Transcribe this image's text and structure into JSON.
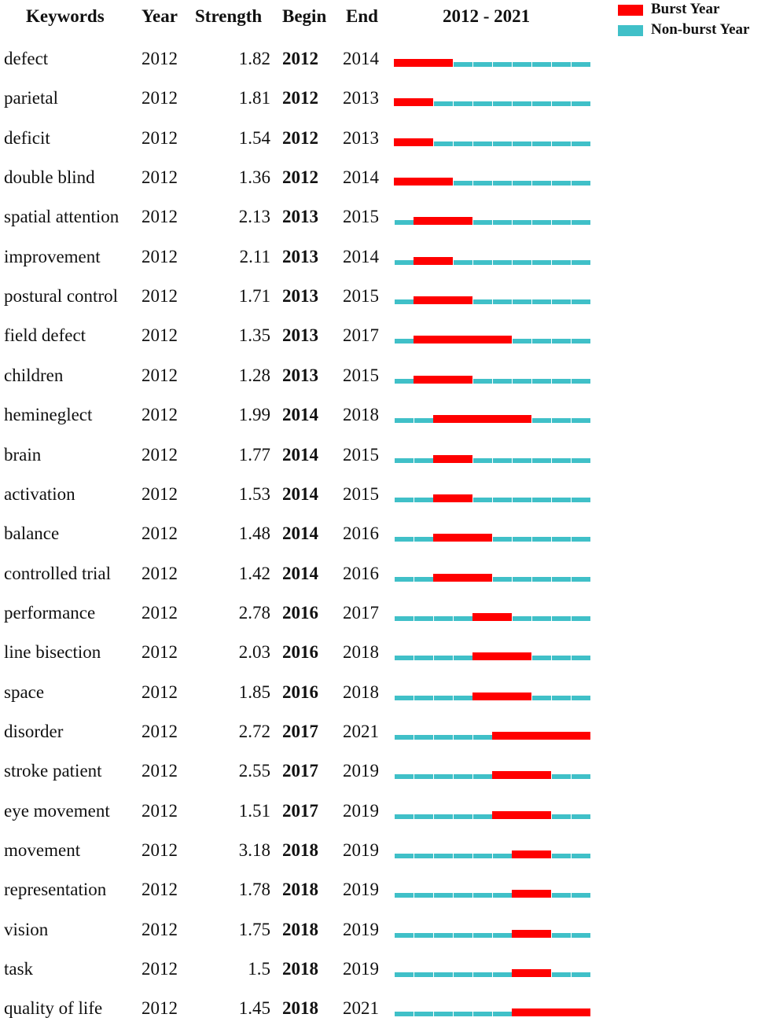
{
  "chart_data": {
    "type": "table",
    "headers": {
      "keywords": "Keywords",
      "year": "Year",
      "strength": "Strength",
      "begin": "Begin",
      "end": "End",
      "range": "2012 - 2021"
    },
    "timeline": {
      "start": 2012,
      "end": 2021
    },
    "legend": [
      {
        "label": "Burst Year",
        "color": "#ff0000"
      },
      {
        "label": "Non-burst Year",
        "color": "#40c0c8"
      }
    ],
    "rows": [
      {
        "keyword": "defect",
        "year": "2012",
        "strength": "1.82",
        "begin": "2012",
        "end": "2014"
      },
      {
        "keyword": "parietal",
        "year": "2012",
        "strength": "1.81",
        "begin": "2012",
        "end": "2013"
      },
      {
        "keyword": "deficit",
        "year": "2012",
        "strength": "1.54",
        "begin": "2012",
        "end": "2013"
      },
      {
        "keyword": "double blind",
        "year": "2012",
        "strength": "1.36",
        "begin": "2012",
        "end": "2014"
      },
      {
        "keyword": "spatial attention",
        "year": "2012",
        "strength": "2.13",
        "begin": "2013",
        "end": "2015"
      },
      {
        "keyword": "improvement",
        "year": "2012",
        "strength": "2.11",
        "begin": "2013",
        "end": "2014"
      },
      {
        "keyword": "postural control",
        "year": "2012",
        "strength": "1.71",
        "begin": "2013",
        "end": "2015"
      },
      {
        "keyword": "field defect",
        "year": "2012",
        "strength": "1.35",
        "begin": "2013",
        "end": "2017"
      },
      {
        "keyword": "children",
        "year": "2012",
        "strength": "1.28",
        "begin": "2013",
        "end": "2015"
      },
      {
        "keyword": "hemineglect",
        "year": "2012",
        "strength": "1.99",
        "begin": "2014",
        "end": "2018"
      },
      {
        "keyword": "brain",
        "year": "2012",
        "strength": "1.77",
        "begin": "2014",
        "end": "2015"
      },
      {
        "keyword": "activation",
        "year": "2012",
        "strength": "1.53",
        "begin": "2014",
        "end": "2015"
      },
      {
        "keyword": "balance",
        "year": "2012",
        "strength": "1.48",
        "begin": "2014",
        "end": "2016"
      },
      {
        "keyword": "controlled trial",
        "year": "2012",
        "strength": "1.42",
        "begin": "2014",
        "end": "2016"
      },
      {
        "keyword": "performance",
        "year": "2012",
        "strength": "2.78",
        "begin": "2016",
        "end": "2017"
      },
      {
        "keyword": "line bisection",
        "year": "2012",
        "strength": "2.03",
        "begin": "2016",
        "end": "2018"
      },
      {
        "keyword": "space",
        "year": "2012",
        "strength": "1.85",
        "begin": "2016",
        "end": "2018"
      },
      {
        "keyword": "disorder",
        "year": "2012",
        "strength": "2.72",
        "begin": "2017",
        "end": "2021"
      },
      {
        "keyword": "stroke patient",
        "year": "2012",
        "strength": "2.55",
        "begin": "2017",
        "end": "2019"
      },
      {
        "keyword": "eye movement",
        "year": "2012",
        "strength": "1.51",
        "begin": "2017",
        "end": "2019"
      },
      {
        "keyword": "movement",
        "year": "2012",
        "strength": "3.18",
        "begin": "2018",
        "end": "2019"
      },
      {
        "keyword": "representation",
        "year": "2012",
        "strength": "1.78",
        "begin": "2018",
        "end": "2019"
      },
      {
        "keyword": "vision",
        "year": "2012",
        "strength": "1.75",
        "begin": "2018",
        "end": "2019"
      },
      {
        "keyword": "task",
        "year": "2012",
        "strength": "1.5",
        "begin": "2018",
        "end": "2019"
      },
      {
        "keyword": "quality of life",
        "year": "2012",
        "strength": "1.45",
        "begin": "2018",
        "end": "2021"
      }
    ]
  }
}
